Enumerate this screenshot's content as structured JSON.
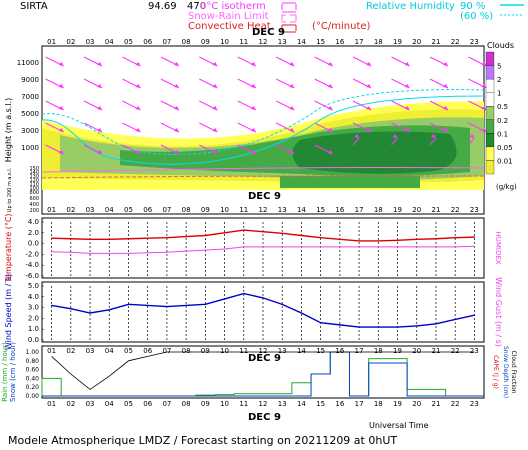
{
  "header": {
    "station": "SIRTA",
    "code": "94.69",
    "code_suffix": "470",
    "isotherm_label": "0°C isotherm",
    "snow_rain_label": "Snow-Rain Limit",
    "convective_label": "Convective Heat.",
    "convective_unit": "(°C/minute)",
    "rh_label": "Relative Humidity",
    "rh_90": "90 %",
    "rh_60": "(60 %)"
  },
  "colors": {
    "wind_arrow": "#ff33ff",
    "temperature": "#dd0000",
    "humidex": "#ee44ee",
    "wind": "#0000cc",
    "rain": "#22aa22",
    "snow": "#0044cc",
    "cloud_fraction": "#000000",
    "rh": "#00ddee",
    "isotherm": "#ff66ff",
    "snow_rain": "#ff6666",
    "convective": "#dd2222"
  },
  "chart_data": [
    {
      "type": "heatmap",
      "name": "clouds",
      "date_label": "DEC 9",
      "x": [
        "01",
        "02",
        "03",
        "04",
        "05",
        "06",
        "07",
        "08",
        "09",
        "10",
        "11",
        "12",
        "13",
        "14",
        "15",
        "16",
        "17",
        "18",
        "19",
        "20",
        "21",
        "22",
        "23"
      ],
      "ylabel": "Height (m a.s.l.)",
      "yticks": [
        "11000",
        "9000",
        "7000",
        "5000",
        "3000",
        "1000",
        "150",
        "140",
        "130",
        "120",
        "110",
        "100"
      ],
      "yticks_low": [
        "800",
        "600",
        "400",
        "200"
      ],
      "ylabel_low": "Up to 200 m a.s.l.",
      "legend_title": "Clouds",
      "legend_unit": "(g/kg)",
      "legend_levels": [
        "5",
        "2",
        "1",
        "0.5",
        "0.2",
        "0.1",
        "0.05",
        "0.01"
      ],
      "legend_colors": [
        "#cc33cc",
        "#bb77ff",
        "#ffffff",
        "#ffffff",
        "#99cc66",
        "#44aa44",
        "#228833",
        "#ffff55",
        "#eeee33"
      ]
    },
    {
      "type": "line",
      "name": "temperature",
      "x": [
        "01",
        "02",
        "03",
        "04",
        "05",
        "06",
        "07",
        "08",
        "09",
        "10",
        "11",
        "12",
        "13",
        "14",
        "15",
        "16",
        "17",
        "18",
        "19",
        "20",
        "21",
        "22",
        "23"
      ],
      "ylabel": "Temperature (°C)",
      "ylabel2": "HUMIDEX",
      "ylim": [
        -6,
        4
      ],
      "yticks": [
        "4.0",
        "2.0",
        "0.0",
        "-2.0",
        "-4.0",
        "-6.0"
      ],
      "series": [
        {
          "name": "Temperature",
          "values": [
            1.0,
            0.9,
            0.8,
            0.8,
            0.9,
            1.0,
            1.1,
            1.3,
            1.5,
            2.0,
            2.5,
            2.2,
            1.9,
            1.5,
            1.1,
            0.8,
            0.5,
            0.5,
            0.6,
            0.8,
            0.9,
            1.1,
            1.2
          ]
        },
        {
          "name": "HUMIDEX",
          "values": [
            -1.5,
            -1.6,
            -1.8,
            -1.8,
            -1.8,
            -1.7,
            -1.6,
            -1.4,
            -1.2,
            -1.0,
            -0.6,
            -0.6,
            -0.6,
            -0.6,
            -0.6,
            -0.6,
            -0.6,
            -0.6,
            -0.6,
            -0.6,
            -0.6,
            -0.6,
            -0.5
          ]
        }
      ]
    },
    {
      "type": "line",
      "name": "wind",
      "x": [
        "01",
        "02",
        "03",
        "04",
        "05",
        "06",
        "07",
        "08",
        "09",
        "10",
        "11",
        "12",
        "13",
        "14",
        "15",
        "16",
        "17",
        "18",
        "19",
        "20",
        "21",
        "22",
        "23"
      ],
      "ylabel": "Wind Speed (m / s)",
      "ylabel2": "Wind Gust (m / s)",
      "ylim": [
        0,
        5
      ],
      "yticks": [
        "5.0",
        "4.0",
        "3.0",
        "2.0",
        "1.0",
        "0.0"
      ],
      "series": [
        {
          "name": "Wind Speed",
          "values": [
            3.2,
            2.9,
            2.5,
            2.8,
            3.3,
            3.2,
            3.1,
            3.2,
            3.3,
            3.8,
            4.3,
            3.9,
            3.3,
            2.5,
            1.6,
            1.4,
            1.2,
            1.2,
            1.2,
            1.3,
            1.5,
            1.9,
            2.3
          ]
        }
      ]
    },
    {
      "type": "bar",
      "name": "precip",
      "date_label": "DEC 9",
      "x": [
        "01",
        "02",
        "03",
        "04",
        "05",
        "06",
        "07",
        "08",
        "09",
        "10",
        "11",
        "12",
        "13",
        "14",
        "15",
        "16",
        "17",
        "18",
        "19",
        "20",
        "21",
        "22",
        "23"
      ],
      "ylabel": "Rain (mm / hour)",
      "ylabel_b": "Snow (cm / hour)",
      "ylabel2": "CAPE (J / g)",
      "ylabel2_b": "Snow Depth (cm)",
      "ylabel2_c": "Cloud Fraction",
      "ylim": [
        0,
        1
      ],
      "yticks": [
        "1.00",
        "0.80",
        "0.60",
        "0.40",
        "0.20",
        "0.00"
      ],
      "xlabel": "Universal Time",
      "series": [
        {
          "name": "Rain",
          "values": [
            0.4,
            0,
            0,
            0,
            0,
            0,
            0,
            0,
            0.02,
            0.03,
            0.05,
            0.05,
            0.05,
            0.3,
            0.5,
            1.0,
            0,
            0.85,
            0.85,
            0.15,
            0.15,
            0,
            0
          ]
        },
        {
          "name": "Snow",
          "values": [
            0,
            0,
            0,
            0,
            0,
            0,
            0,
            0,
            0,
            0,
            0,
            0,
            0,
            0,
            0.5,
            1.0,
            0,
            0.75,
            0.75,
            0,
            0,
            0,
            0
          ]
        },
        {
          "name": "Cloud Fraction",
          "values": [
            0.9,
            0.5,
            0.15,
            0.45,
            0.8,
            0.9,
            1.0,
            1.0,
            1.0,
            1.0,
            1.0,
            1.0,
            1.0,
            1.0,
            1.0,
            1.0,
            1.0,
            1.0,
            1.0,
            1.0,
            1.0,
            1.0,
            1.0
          ]
        }
      ]
    }
  ],
  "footer": {
    "text": "Modele Atmospherique LMDZ / Forecast starting on 20211209 at 0hUT"
  }
}
